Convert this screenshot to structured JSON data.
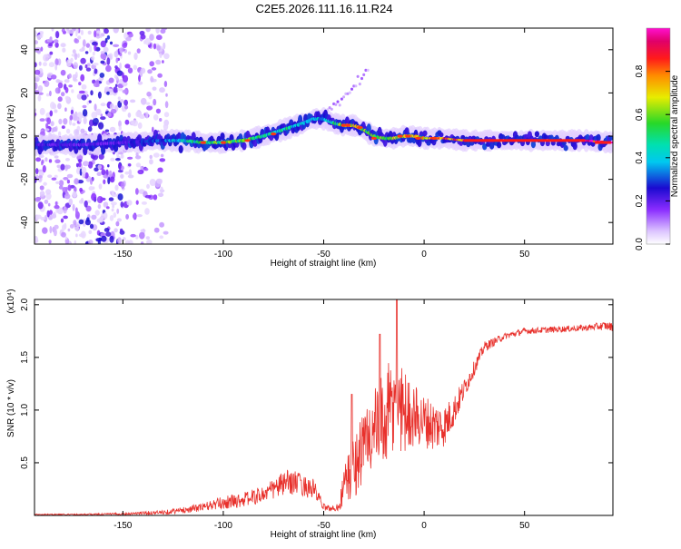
{
  "title": "C2E5.2026.111.16.11.R24",
  "colors": {
    "snr_line": "#e8312c",
    "axis": "#000000",
    "colormap": [
      "#f4e8ff",
      "#c7a1ff",
      "#7a1cff",
      "#2010d0",
      "#00d8e8",
      "#2cdc34",
      "#f0e800",
      "#ff7a00",
      "#ff2020",
      "#e6007e",
      "#ff00cc"
    ]
  },
  "chart_data": [
    {
      "type": "heatmap",
      "title": "Spectrogram",
      "xlabel": "Height of straight line (km)",
      "ylabel": "Frequency (Hz)",
      "xlim": [
        -194,
        94
      ],
      "ylim": [
        -50,
        50
      ],
      "xticks": [
        "-150",
        "-100",
        "-50",
        "0",
        "50"
      ],
      "xtick_values": [
        -150,
        -100,
        -50,
        0,
        50
      ],
      "yticks": [
        "-40",
        "-20",
        "0",
        "20",
        "40"
      ],
      "ytick_values": [
        -40,
        -20,
        0,
        20,
        40
      ],
      "colorbar": {
        "label": "Normalized spectral amplitude",
        "range": [
          0,
          1
        ],
        "ticks": [
          "0.0",
          "0.2",
          "0.4",
          "0.6",
          "0.8"
        ],
        "tick_values": [
          0.0,
          0.2,
          0.4,
          0.6,
          0.8
        ]
      },
      "ridge": {
        "x": [
          -194,
          -170,
          -150,
          -130,
          -120,
          -110,
          -100,
          -90,
          -80,
          -70,
          -60,
          -55,
          -50,
          -45,
          -40,
          -35,
          -30,
          -25,
          -20,
          -15,
          -10,
          -5,
          0,
          10,
          20,
          40,
          60,
          80,
          94
        ],
        "y": [
          -4,
          -4,
          -3,
          -2,
          -2,
          -3,
          -3,
          -2,
          0,
          3,
          6,
          8,
          8,
          6,
          5,
          5,
          3,
          0,
          -1,
          -1,
          0,
          0,
          -1,
          -1,
          -2,
          -2,
          -2,
          -2,
          -3
        ],
        "amplitude": [
          0.25,
          0.2,
          0.22,
          0.35,
          0.45,
          0.55,
          0.6,
          0.6,
          0.55,
          0.5,
          0.45,
          0.4,
          0.42,
          0.5,
          0.7,
          0.8,
          0.65,
          0.55,
          0.6,
          0.65,
          0.7,
          0.75,
          0.8,
          0.85,
          0.9,
          0.92,
          0.95,
          0.95,
          0.97
        ]
      },
      "secondary_branch": {
        "x": [
          -50,
          -45,
          -40,
          -35,
          -28
        ],
        "y": [
          10,
          14,
          18,
          22,
          30
        ]
      }
    },
    {
      "type": "line",
      "title": "SNR",
      "xlabel": "Height of straight line (km)",
      "ylabel": "SNR (10 * v/v)",
      "scale_label": "(x10⁴)",
      "xlim": [
        -194,
        94
      ],
      "ylim": [
        0,
        2.05
      ],
      "xticks": [
        "-150",
        "-100",
        "-50",
        "0",
        "50"
      ],
      "xtick_values": [
        -150,
        -100,
        -50,
        0,
        50
      ],
      "yticks": [
        "0.5",
        "1.0",
        "1.5",
        "2.0"
      ],
      "ytick_values": [
        0.5,
        1.0,
        1.5,
        2.0
      ],
      "series": [
        {
          "name": "SNR",
          "x": [
            -194,
            -170,
            -150,
            -130,
            -120,
            -110,
            -100,
            -90,
            -80,
            -75,
            -70,
            -65,
            -60,
            -55,
            -50,
            -45,
            -42,
            -40,
            -38,
            -35,
            -32,
            -30,
            -28,
            -25,
            -22,
            -20,
            -18,
            -15,
            -13,
            -12,
            -10,
            -5,
            0,
            5,
            10,
            15,
            20,
            25,
            30,
            40,
            50,
            60,
            70,
            80,
            90,
            94
          ],
          "base": [
            0.01,
            0.01,
            0.015,
            0.03,
            0.05,
            0.08,
            0.12,
            0.15,
            0.2,
            0.25,
            0.3,
            0.32,
            0.28,
            0.25,
            0.08,
            0.06,
            0.1,
            0.3,
            0.35,
            0.45,
            0.6,
            0.65,
            0.75,
            0.8,
            0.85,
            0.9,
            0.95,
            1.0,
            1.05,
            1.05,
            1.0,
            0.95,
            0.9,
            0.85,
            0.85,
            1.0,
            1.2,
            1.4,
            1.6,
            1.7,
            1.75,
            1.76,
            1.77,
            1.78,
            1.8,
            1.79
          ],
          "noise": [
            0.005,
            0.006,
            0.01,
            0.02,
            0.03,
            0.04,
            0.06,
            0.07,
            0.08,
            0.1,
            0.12,
            0.12,
            0.1,
            0.1,
            0.03,
            0.03,
            0.05,
            0.2,
            0.25,
            0.3,
            0.35,
            0.35,
            0.4,
            0.4,
            0.45,
            0.45,
            0.5,
            0.45,
            0.5,
            0.5,
            0.4,
            0.3,
            0.25,
            0.25,
            0.2,
            0.15,
            0.1,
            0.07,
            0.05,
            0.03,
            0.03,
            0.03,
            0.03,
            0.03,
            0.04,
            0.04
          ]
        }
      ]
    }
  ]
}
